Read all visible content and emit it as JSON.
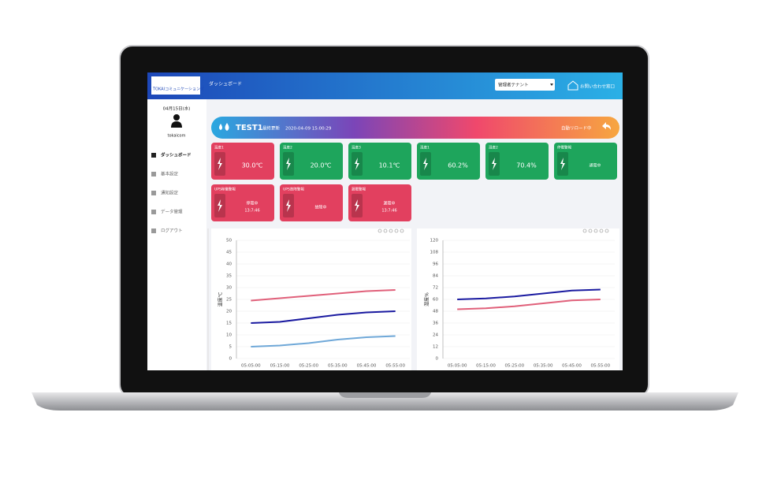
{
  "header": {
    "title": "ダッシュボード",
    "tenant": "管理者テナント",
    "contact": "お問い合わせ窓口",
    "logo": "TOKAIコミュニケーションズ"
  },
  "sidebar": {
    "date": "04月15日(水)",
    "user": "tokaicom",
    "menu": [
      "ダッシュボード",
      "基本設定",
      "通知設定",
      "データ管理",
      "ログアウト"
    ]
  },
  "panel": {
    "name": "TEST1",
    "updated_label": "最終更新",
    "updated": "2020-04-09 15:00:29",
    "reload": "自動リロード中"
  },
  "cards": [
    {
      "label": "温度1",
      "value": "30.0℃",
      "color": "#e2405f"
    },
    {
      "label": "温度2",
      "value": "20.0℃",
      "color": "#1ea55c"
    },
    {
      "label": "温度3",
      "value": "10.1℃",
      "color": "#1ea55c"
    },
    {
      "label": "湿度1",
      "value": "60.2%",
      "color": "#1ea55c"
    },
    {
      "label": "湿度2",
      "value": "70.4%",
      "color": "#1ea55c"
    },
    {
      "label": "停電警報",
      "value": "通電中",
      "color": "#1ea55c"
    },
    {
      "label": "UPS稼働警報",
      "value": "停電中",
      "time": "13:7:46",
      "color": "#e2405f"
    },
    {
      "label": "UPS故障警報",
      "value": "故障中",
      "color": "#e2405f"
    },
    {
      "label": "漏電警報",
      "value": "漏電中",
      "time": "13:7:46",
      "color": "#e2405f"
    }
  ],
  "chart_data": [
    {
      "type": "line",
      "ylabel": "温度℃",
      "categories": [
        "05:05:00",
        "05:15:00",
        "05:25:00",
        "05:35:00",
        "05:45:00",
        "05:55:00"
      ],
      "ylim": [
        0,
        50
      ],
      "yticks": [
        0,
        5,
        10,
        15,
        20,
        25,
        30,
        35,
        40,
        45,
        50
      ],
      "grid": true,
      "series": [
        {
          "color": "#e0607a",
          "values": [
            24.5,
            25.5,
            26.5,
            27.5,
            28.5,
            29
          ]
        },
        {
          "color": "#1a1aa0",
          "values": [
            15,
            15.5,
            17,
            18.5,
            19.5,
            20
          ]
        },
        {
          "color": "#6fa8d8",
          "values": [
            5,
            5.5,
            6.5,
            8,
            9,
            9.5
          ]
        }
      ]
    },
    {
      "type": "line",
      "ylabel": "湿度%",
      "categories": [
        "05:05:00",
        "05:15:00",
        "05:25:00",
        "05:35:00",
        "05:45:00",
        "05:55:00"
      ],
      "ylim": [
        0,
        120
      ],
      "yticks": [
        0,
        12,
        24,
        36,
        48,
        60,
        72,
        84,
        96,
        108,
        120
      ],
      "grid": true,
      "series": [
        {
          "color": "#1a1aa0",
          "values": [
            60,
            61,
            63,
            66,
            69,
            70
          ]
        },
        {
          "color": "#e0607a",
          "values": [
            50,
            51,
            53,
            56,
            59,
            60
          ]
        }
      ]
    }
  ]
}
